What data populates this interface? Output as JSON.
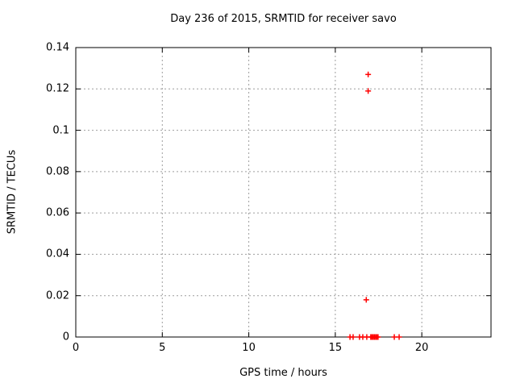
{
  "page": {
    "background": "#ffffff",
    "text_color": "#000000"
  },
  "chart_data": {
    "type": "scatter",
    "title": "Day 236 of 2015, SRMTID for receiver savo",
    "xlabel": "GPS time / hours",
    "ylabel": "SRMTID / TECUs",
    "xlim": [
      0,
      24
    ],
    "ylim": [
      0,
      0.14
    ],
    "xticks": {
      "values": [
        0,
        5,
        10,
        15,
        20
      ],
      "labels": [
        "0",
        "5",
        "10",
        "15",
        "20"
      ]
    },
    "yticks": {
      "values": [
        0,
        0.02,
        0.04,
        0.06,
        0.08,
        0.1,
        0.12,
        0.14
      ],
      "labels": [
        "0",
        "0.02",
        "0.04",
        "0.06",
        "0.08",
        "0.1",
        "0.12",
        "0.14"
      ]
    },
    "grid": {
      "show": true,
      "color": "#9e9e9e",
      "style": "dashed"
    },
    "frame_color": "#000000",
    "legend": "none",
    "series": [
      {
        "name": "SRMTID",
        "marker": "plus",
        "color": "#ff0000",
        "points": [
          [
            15.85,
            0
          ],
          [
            16.03,
            0
          ],
          [
            16.4,
            0
          ],
          [
            16.59,
            0
          ],
          [
            16.82,
            0
          ],
          [
            17.05,
            0
          ],
          [
            17.12,
            0
          ],
          [
            17.19,
            0
          ],
          [
            17.26,
            0
          ],
          [
            17.33,
            0
          ],
          [
            17.4,
            0
          ],
          [
            17.47,
            0
          ],
          [
            18.41,
            0
          ],
          [
            18.69,
            0
          ],
          [
            16.79,
            0.018
          ],
          [
            16.9,
            0.119
          ],
          [
            16.9,
            0.127
          ]
        ]
      }
    ]
  }
}
